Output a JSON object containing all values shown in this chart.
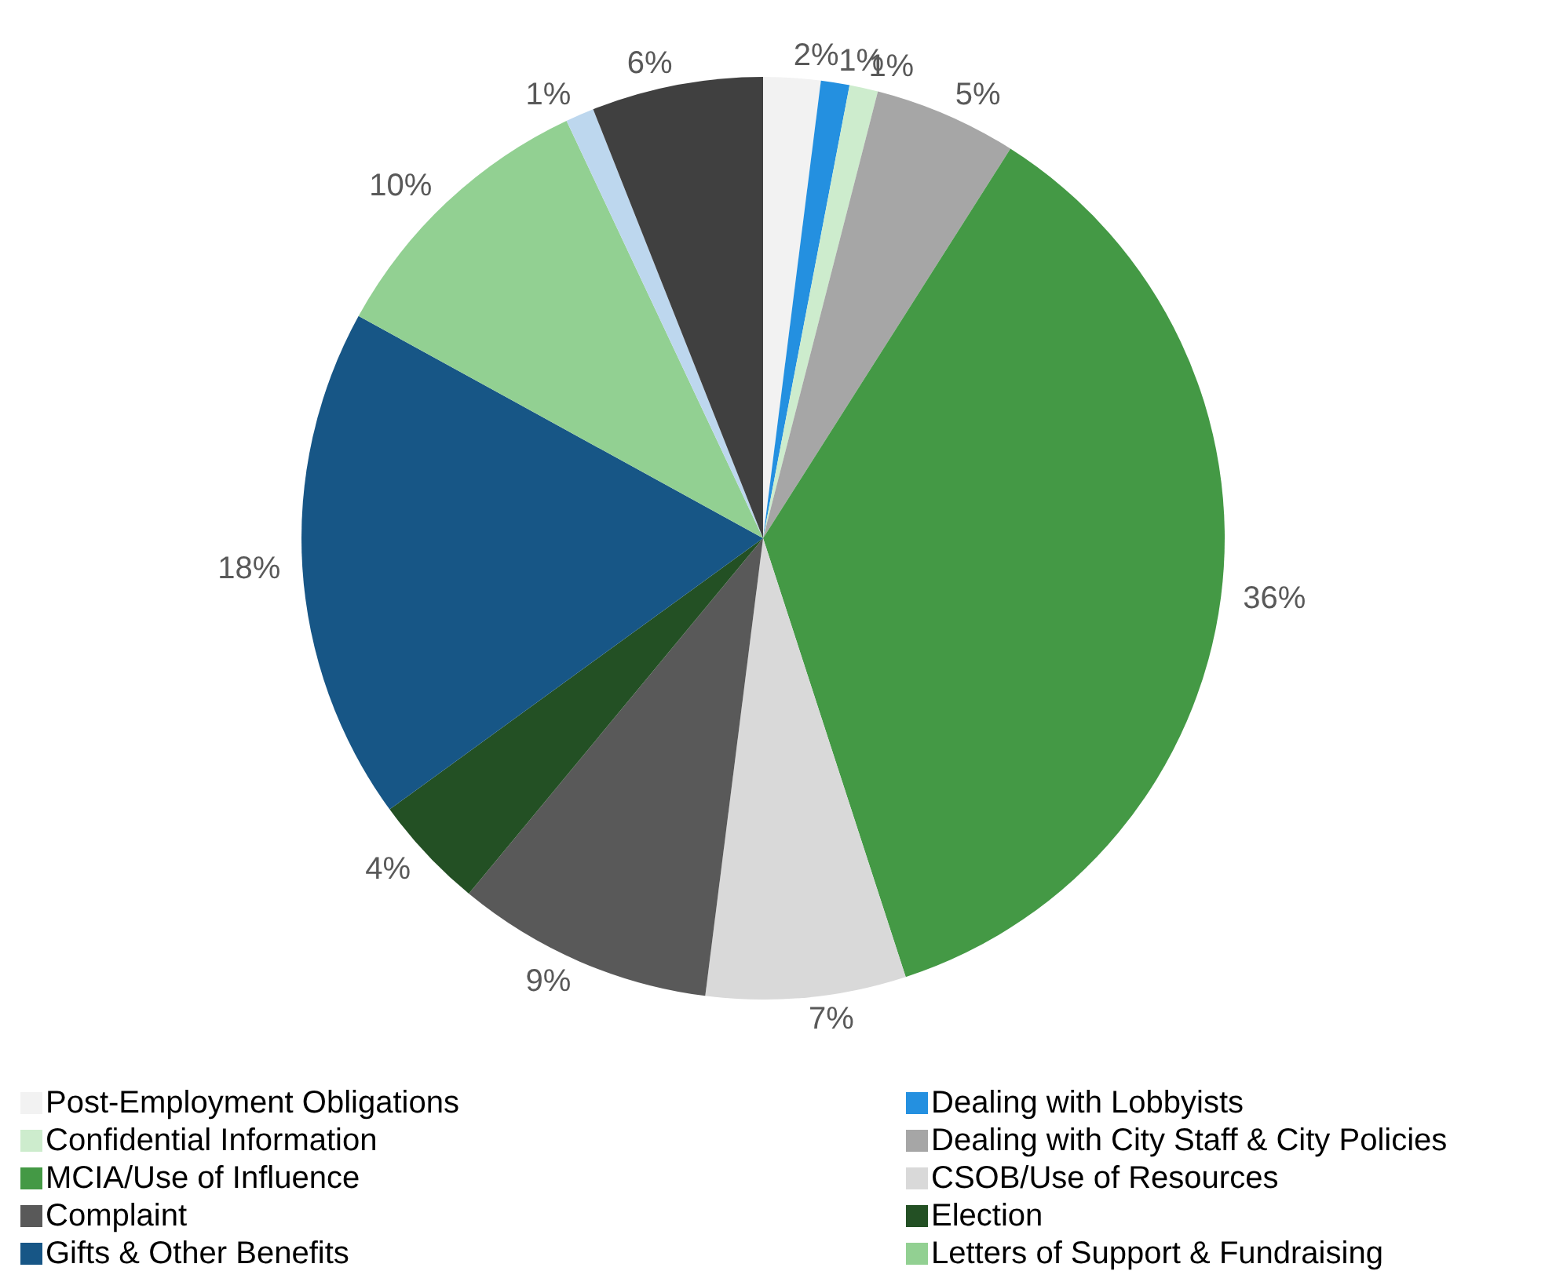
{
  "chart_data": {
    "type": "pie",
    "categories": [
      "Post-Employment Obligations",
      "Dealing with Lobbyists",
      "Confidential Information",
      "Dealing with City Staff & City Policies",
      "MCIA/Use of Influence",
      "CSOB/Use of Resources",
      "Complaint",
      "Election",
      "Gifts & Other Benefits",
      "Letters of Support & Fundraising",
      null,
      null
    ],
    "values": [
      2,
      1,
      1,
      5,
      36,
      7,
      9,
      4,
      18,
      10,
      1,
      6
    ],
    "colors": [
      "#f2f2f2",
      "#2490e0",
      "#cdeccd",
      "#a6a6a6",
      "#449945",
      "#d9d9d9",
      "#595959",
      "#235024",
      "#175686",
      "#92d092",
      "#bdd7ee",
      "#404040"
    ],
    "value_labels": [
      "2%",
      "1%",
      "1%",
      "5%",
      "36%",
      "7%",
      "9%",
      "4%",
      "18%",
      "10%",
      "1%",
      "6%"
    ],
    "legend": "bottom"
  }
}
